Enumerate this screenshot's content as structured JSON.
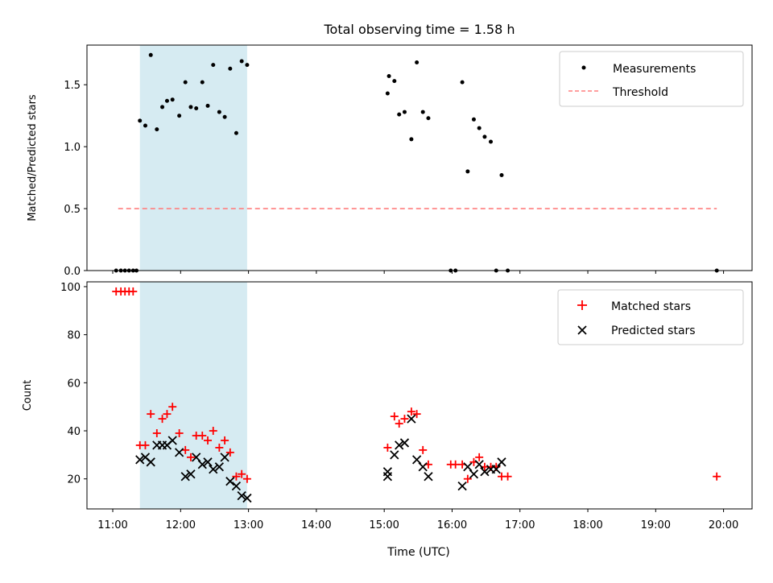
{
  "chart_data": [
    {
      "type": "scatter",
      "title": "Total observing time = 1.58 h",
      "xlabel": "",
      "ylabel": "Matched/Predicted stars",
      "x_unit": "hours UTC",
      "xlim": [
        10.62,
        20.42
      ],
      "ylim": [
        0,
        1.82
      ],
      "yticks": [
        0.0,
        0.5,
        1.0,
        1.5
      ],
      "ytick_labels": [
        "0.0",
        "0.5",
        "1.0",
        "1.5"
      ],
      "grid": false,
      "legend_position": "top-right",
      "highlight_span": [
        11.4,
        12.98
      ],
      "highlight_color": "#add8e6",
      "series": [
        {
          "name": "Measurements",
          "marker": "dot",
          "color": "#000000",
          "x": [
            11.05,
            11.12,
            11.18,
            11.24,
            11.3,
            11.35,
            11.4,
            11.48,
            11.56,
            11.65,
            11.73,
            11.8,
            11.88,
            11.98,
            12.07,
            12.15,
            12.23,
            12.32,
            12.4,
            12.48,
            12.57,
            12.65,
            12.73,
            12.82,
            12.9,
            12.98,
            15.05,
            15.07,
            15.15,
            15.22,
            15.3,
            15.4,
            15.48,
            15.57,
            15.65,
            15.98,
            16.05,
            16.15,
            16.23,
            16.32,
            16.4,
            16.48,
            16.57,
            16.65,
            16.73,
            16.82,
            19.9
          ],
          "y": [
            0,
            0,
            0,
            0,
            0,
            0,
            1.21,
            1.17,
            1.74,
            1.14,
            1.32,
            1.37,
            1.38,
            1.25,
            1.52,
            1.32,
            1.31,
            1.52,
            1.33,
            1.66,
            1.28,
            1.24,
            1.63,
            1.11,
            1.69,
            1.66,
            1.43,
            1.57,
            1.53,
            1.26,
            1.28,
            1.06,
            1.68,
            1.28,
            1.23,
            0,
            0,
            1.52,
            0.8,
            1.22,
            1.15,
            1.08,
            1.04,
            0,
            0.77,
            0,
            0
          ]
        },
        {
          "name": "Threshold",
          "line": "dashed",
          "color": "#ff7f7f",
          "x": [
            11.08,
            19.9
          ],
          "y": [
            0.5,
            0.5
          ]
        }
      ]
    },
    {
      "type": "scatter",
      "title": "",
      "xlabel": "Time (UTC)",
      "ylabel": "Count",
      "x_unit": "hours UTC",
      "xlim": [
        10.62,
        20.42
      ],
      "ylim": [
        7.5,
        102
      ],
      "yticks": [
        20,
        40,
        60,
        80,
        100
      ],
      "ytick_labels": [
        "20",
        "40",
        "60",
        "80",
        "100"
      ],
      "xticks": [
        11,
        12,
        13,
        14,
        15,
        16,
        17,
        18,
        19,
        20
      ],
      "xtick_labels": [
        "11:00",
        "12:00",
        "13:00",
        "14:00",
        "15:00",
        "16:00",
        "17:00",
        "18:00",
        "19:00",
        "20:00"
      ],
      "grid": false,
      "legend_position": "top-right",
      "highlight_span": [
        11.4,
        12.98
      ],
      "highlight_color": "#add8e6",
      "series": [
        {
          "name": "Matched stars",
          "marker": "plus",
          "color": "#ff0000",
          "x": [
            11.05,
            11.12,
            11.18,
            11.24,
            11.3,
            11.4,
            11.48,
            11.56,
            11.65,
            11.73,
            11.8,
            11.88,
            11.98,
            12.07,
            12.15,
            12.23,
            12.32,
            12.4,
            12.48,
            12.57,
            12.65,
            12.73,
            12.82,
            12.9,
            12.98,
            15.05,
            15.15,
            15.22,
            15.3,
            15.4,
            15.48,
            15.57,
            15.65,
            15.98,
            16.05,
            16.15,
            16.23,
            16.32,
            16.4,
            16.48,
            16.57,
            16.65,
            16.73,
            16.82,
            19.9
          ],
          "y": [
            98,
            98,
            98,
            98,
            98,
            34,
            34,
            47,
            39,
            45,
            47,
            50,
            39,
            32,
            29,
            38,
            38,
            36,
            40,
            33,
            36,
            31,
            21,
            22,
            20,
            33,
            46,
            43,
            45,
            48,
            47,
            32,
            26,
            26,
            26,
            26,
            20,
            27,
            29,
            25,
            25,
            25,
            21,
            21,
            21
          ]
        },
        {
          "name": "Predicted stars",
          "marker": "x",
          "color": "#000000",
          "x": [
            11.4,
            11.48,
            11.56,
            11.65,
            11.73,
            11.8,
            11.88,
            11.98,
            12.07,
            12.15,
            12.23,
            12.32,
            12.4,
            12.48,
            12.57,
            12.65,
            12.73,
            12.82,
            12.9,
            12.98,
            15.05,
            15.05,
            15.15,
            15.22,
            15.3,
            15.4,
            15.48,
            15.57,
            15.65,
            16.15,
            16.23,
            16.32,
            16.4,
            16.48,
            16.57,
            16.65,
            16.73
          ],
          "y": [
            28,
            29,
            27,
            34,
            34,
            34,
            36,
            31,
            21,
            22,
            29,
            26,
            27,
            24,
            25,
            29,
            19,
            17,
            13,
            12,
            23,
            21,
            30,
            34,
            35,
            45,
            28,
            25,
            21,
            17,
            25,
            22,
            26,
            23,
            24,
            24,
            27
          ]
        }
      ]
    }
  ]
}
